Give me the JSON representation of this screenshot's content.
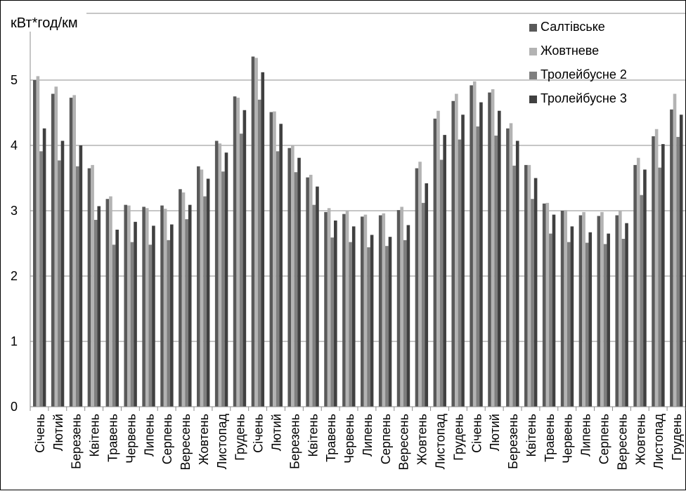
{
  "chart_data": {
    "type": "bar",
    "ylabel": "кВт*год/км",
    "ylim": [
      0,
      6
    ],
    "yticks": [
      0,
      1,
      2,
      3,
      4,
      5
    ],
    "grid": true,
    "legend_position": "top-right",
    "categories": [
      "Січень",
      "Лютий",
      "Березень",
      "Квітень",
      "Травень",
      "Червень",
      "Липень",
      "Серпень",
      "Вересень",
      "Жовтень",
      "Листопад",
      "Грудень",
      "Січень",
      "Лютий",
      "Березень",
      "Квітень",
      "Травень",
      "Червень",
      "Липень",
      "Серпень",
      "Вересень",
      "Жовтень",
      "Листопад",
      "Грудень",
      "Січень",
      "Лютий",
      "Березень",
      "Квітень",
      "Травень",
      "Червень",
      "Липень",
      "Серпень",
      "Вересень",
      "Жовтень",
      "Листопад",
      "Грудень"
    ],
    "series": [
      {
        "name": "Салтівське",
        "color": "#595959",
        "values": [
          5.0,
          4.79,
          4.73,
          3.65,
          3.18,
          3.09,
          3.06,
          3.08,
          3.33,
          3.68,
          4.07,
          4.75,
          5.36,
          4.51,
          3.96,
          3.51,
          2.98,
          2.95,
          2.91,
          2.93,
          3.01,
          3.65,
          4.41,
          4.68,
          4.92,
          4.81,
          4.26,
          3.7,
          3.11,
          3.0,
          2.93,
          2.92,
          2.93,
          3.7,
          4.14,
          4.55
        ]
      },
      {
        "name": "Жовтневе",
        "color": "#b3b3b3",
        "values": [
          5.06,
          4.9,
          4.77,
          3.7,
          3.22,
          3.08,
          3.04,
          3.03,
          3.28,
          3.63,
          4.03,
          4.73,
          5.34,
          4.52,
          4.0,
          3.55,
          3.04,
          3.0,
          2.94,
          2.96,
          3.06,
          3.75,
          4.53,
          4.79,
          4.98,
          4.86,
          4.34,
          3.7,
          3.12,
          3.01,
          2.98,
          2.98,
          3.0,
          3.81,
          4.25,
          4.79
        ]
      },
      {
        "name": "Тролейбусне 2",
        "color": "#7f7f7f",
        "values": [
          3.91,
          3.77,
          3.68,
          2.86,
          2.48,
          2.52,
          2.48,
          2.55,
          2.87,
          3.22,
          3.6,
          4.18,
          4.7,
          3.91,
          3.59,
          3.09,
          2.59,
          2.52,
          2.44,
          2.46,
          2.55,
          3.12,
          3.78,
          4.09,
          4.29,
          4.15,
          3.69,
          3.18,
          2.65,
          2.52,
          2.51,
          2.49,
          2.57,
          3.24,
          3.66,
          4.13
        ]
      },
      {
        "name": "Тролейбусне 3",
        "color": "#404040",
        "values": [
          4.26,
          4.07,
          4.0,
          3.07,
          2.71,
          2.83,
          2.77,
          2.79,
          3.09,
          3.49,
          3.89,
          4.54,
          5.12,
          4.33,
          3.81,
          3.37,
          2.85,
          2.76,
          2.63,
          2.6,
          2.78,
          3.42,
          4.16,
          4.47,
          4.66,
          4.53,
          4.07,
          3.5,
          2.94,
          2.76,
          2.67,
          2.65,
          2.81,
          3.63,
          4.02,
          4.47
        ]
      }
    ]
  }
}
